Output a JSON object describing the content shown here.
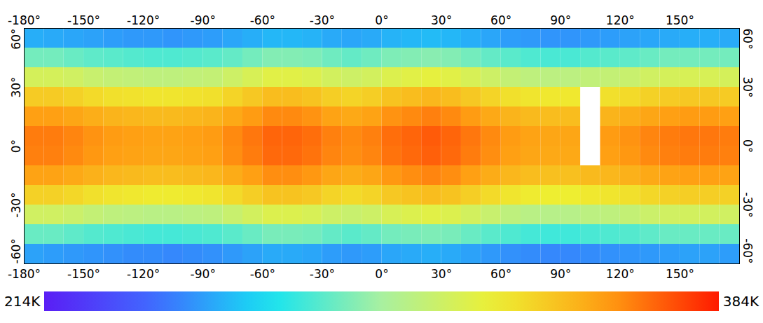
{
  "chart_data": {
    "type": "heatmap",
    "xlim": [
      -180,
      180
    ],
    "xticks": [
      {
        "value": -180,
        "label": "-180°"
      },
      {
        "value": -150,
        "label": "-150°"
      },
      {
        "value": -120,
        "label": "-120°"
      },
      {
        "value": -90,
        "label": "-90°"
      },
      {
        "value": -60,
        "label": "-60°"
      },
      {
        "value": -30,
        "label": "-30°"
      },
      {
        "value": 0,
        "label": "0°"
      },
      {
        "value": 30,
        "label": "30°"
      },
      {
        "value": 60,
        "label": "60°"
      },
      {
        "value": 90,
        "label": "90°"
      },
      {
        "value": 120,
        "label": "120°"
      },
      {
        "value": 150,
        "label": "150°"
      }
    ],
    "ylim": [
      -60,
      60
    ],
    "yticks": [
      {
        "value": 60,
        "label": "60°"
      },
      {
        "value": 30,
        "label": "30°"
      },
      {
        "value": 0,
        "label": "0°"
      },
      {
        "value": -30,
        "label": "-30°"
      },
      {
        "value": -60,
        "label": "-60°"
      }
    ],
    "x_edges": [
      -180,
      -170,
      -160,
      -150,
      -140,
      -130,
      -120,
      -110,
      -100,
      -90,
      -80,
      -70,
      -60,
      -50,
      -40,
      -30,
      -20,
      -10,
      0,
      10,
      20,
      30,
      40,
      50,
      60,
      70,
      80,
      90,
      100,
      110,
      120,
      130,
      140,
      150,
      160,
      170,
      180
    ],
    "y_edges": [
      60,
      50,
      40,
      30,
      20,
      10,
      0,
      -10,
      -20,
      -30,
      -40,
      -50,
      -60
    ],
    "cells": [
      [
        258,
        257,
        256,
        255,
        254,
        253,
        253,
        252,
        253,
        254,
        256,
        258,
        260,
        260,
        259,
        257,
        256,
        257,
        259,
        260,
        261,
        260,
        258,
        256,
        254,
        253,
        252,
        252,
        253,
        254,
        255,
        256,
        257,
        258,
        258,
        257
      ],
      [
        289,
        289,
        287,
        285,
        284,
        283,
        282,
        282,
        283,
        284,
        286,
        289,
        292,
        292,
        291,
        288,
        286,
        288,
        291,
        292,
        293,
        292,
        289,
        286,
        284,
        282,
        281,
        281,
        283,
        284,
        285,
        287,
        289,
        289,
        289,
        289
      ],
      [
        317,
        317,
        315,
        312,
        310,
        309,
        308,
        308,
        309,
        310,
        314,
        318,
        322,
        322,
        320,
        316,
        314,
        316,
        320,
        322,
        324,
        322,
        318,
        314,
        310,
        308,
        307,
        307,
        309,
        310,
        312,
        315,
        317,
        318,
        318,
        317
      ],
      [
        340,
        340,
        338,
        335,
        333,
        332,
        331,
        331,
        332,
        333,
        337,
        341,
        345,
        345,
        343,
        339,
        337,
        339,
        343,
        345,
        347,
        345,
        341,
        337,
        333,
        331,
        330,
        330,
        null,
        333,
        335,
        338,
        340,
        341,
        341,
        340
      ],
      [
        355,
        355,
        353,
        350,
        348,
        347,
        346,
        346,
        347,
        348,
        352,
        356,
        360,
        360,
        358,
        354,
        352,
        354,
        358,
        360,
        362,
        360,
        356,
        352,
        348,
        346,
        345,
        345,
        null,
        348,
        350,
        353,
        355,
        356,
        356,
        355
      ],
      [
        363,
        363,
        361,
        358,
        356,
        355,
        354,
        354,
        355,
        356,
        360,
        364,
        368,
        368,
        366,
        362,
        360,
        362,
        366,
        368,
        370,
        368,
        364,
        360,
        356,
        354,
        353,
        353,
        null,
        356,
        358,
        361,
        363,
        364,
        364,
        363
      ],
      [
        362,
        362,
        360,
        357,
        355,
        354,
        353,
        353,
        354,
        355,
        359,
        363,
        367,
        367,
        365,
        361,
        359,
        361,
        365,
        367,
        369,
        367,
        363,
        359,
        355,
        353,
        352,
        352,
        null,
        355,
        357,
        360,
        362,
        363,
        363,
        362
      ],
      [
        354,
        354,
        352,
        349,
        347,
        346,
        345,
        345,
        346,
        347,
        351,
        355,
        359,
        359,
        357,
        353,
        351,
        353,
        357,
        359,
        361,
        359,
        355,
        351,
        347,
        345,
        344,
        344,
        346,
        347,
        349,
        352,
        354,
        355,
        355,
        354
      ],
      [
        338,
        338,
        336,
        333,
        331,
        330,
        329,
        329,
        330,
        331,
        335,
        339,
        343,
        343,
        341,
        337,
        335,
        337,
        341,
        343,
        345,
        343,
        339,
        335,
        331,
        329,
        328,
        328,
        330,
        331,
        333,
        336,
        338,
        339,
        339,
        338
      ],
      [
        315,
        315,
        313,
        310,
        308,
        307,
        306,
        306,
        307,
        308,
        312,
        316,
        320,
        320,
        318,
        314,
        312,
        314,
        318,
        320,
        322,
        320,
        316,
        312,
        308,
        306,
        305,
        305,
        307,
        308,
        310,
        313,
        315,
        316,
        316,
        315
      ],
      [
        287,
        287,
        285,
        283,
        282,
        281,
        280,
        280,
        281,
        282,
        284,
        287,
        290,
        290,
        289,
        286,
        284,
        286,
        289,
        290,
        291,
        290,
        287,
        284,
        282,
        280,
        279,
        279,
        281,
        282,
        283,
        285,
        287,
        287,
        287,
        287
      ],
      [
        255,
        254,
        253,
        252,
        251,
        250,
        250,
        249,
        250,
        251,
        253,
        255,
        257,
        257,
        256,
        254,
        253,
        254,
        256,
        257,
        258,
        257,
        255,
        253,
        251,
        250,
        249,
        249,
        250,
        251,
        252,
        253,
        254,
        255,
        255,
        254
      ]
    ],
    "colorbar": {
      "range": [
        214,
        384
      ],
      "ticks": [
        {
          "value": 214,
          "label": "214K"
        },
        {
          "value": 384,
          "label": "384K"
        }
      ]
    },
    "tick_labels": true
  }
}
